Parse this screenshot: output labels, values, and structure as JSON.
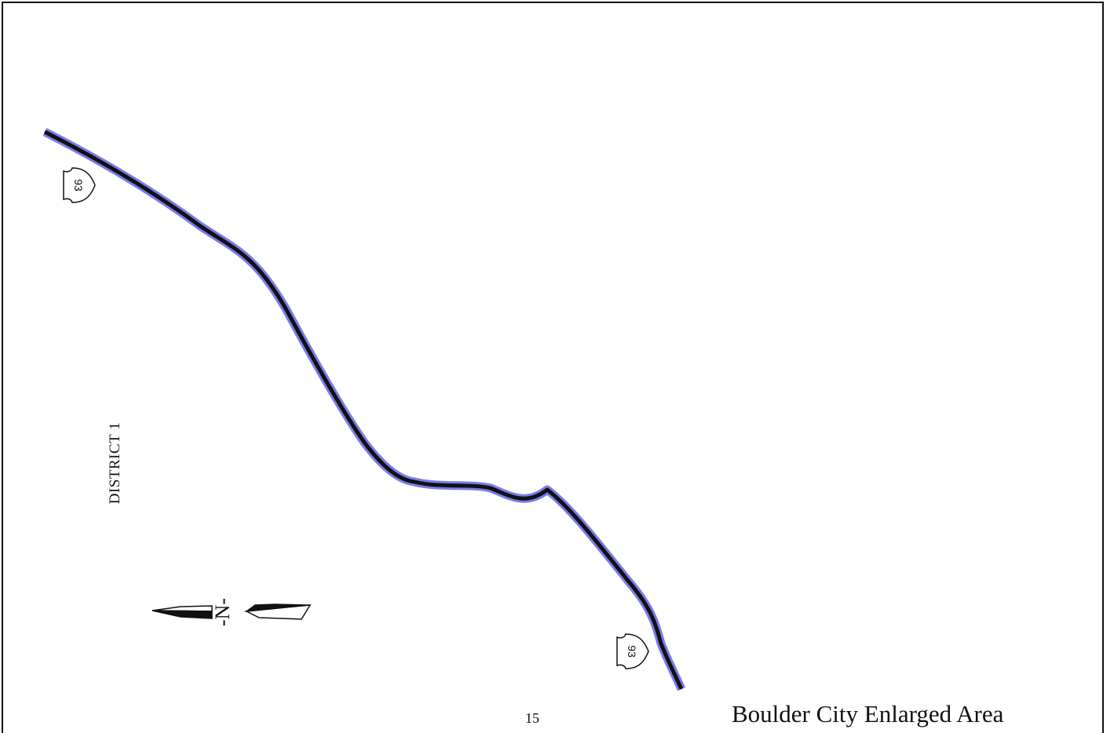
{
  "map": {
    "title": "Boulder City Enlarged Area",
    "page_number": "15",
    "district_label": "DISTRICT 1",
    "north_symbol": "-N-",
    "route_shields": [
      {
        "route": "93",
        "icon": "us-route-shield-icon"
      },
      {
        "route": "93",
        "icon": "us-route-shield-icon"
      }
    ],
    "colors": {
      "highway_casing": "#7b7bee",
      "highway_line": "#111111",
      "frame": "#111111"
    }
  }
}
